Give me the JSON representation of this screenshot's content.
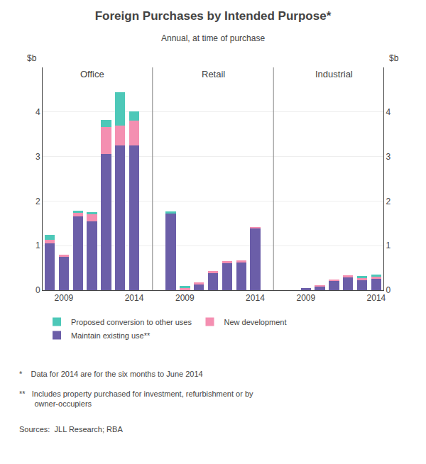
{
  "chart_data": {
    "type": "bar",
    "stacked": true,
    "title": "Foreign Purchases by Intended Purpose*",
    "subtitle": "Annual, at time of purchase",
    "ylabel": "$b",
    "y2label": "$b",
    "annotations": [
      "Office",
      "Retail",
      "Industrial"
    ],
    "footnotes": [
      "*    Data for 2014 are for the six months to June 2014",
      "**   Includes property purchased for investment, refurbishment or by\n       owner-occupiers",
      "Sources:  JLL Research; RBA"
    ],
    "categories": [
      null,
      "2009",
      null,
      null,
      null,
      null,
      "2014",
      null,
      "2009",
      null,
      null,
      null,
      null,
      "2014",
      null,
      "2009",
      null,
      null,
      null,
      null,
      "2014"
    ],
    "series": [
      {
        "name": "Maintain existing use**",
        "color": "#6B5EA8",
        "values": [
          1.05,
          0.75,
          1.65,
          1.55,
          3.05,
          3.25,
          3.25,
          1.72,
          0.0,
          0.12,
          0.38,
          0.6,
          0.62,
          1.4,
          0.0,
          0.05,
          0.08,
          0.22,
          0.28,
          0.22,
          0.25
        ]
      },
      {
        "name": "New development",
        "color": "#F48FB1",
        "values": [
          0.08,
          0.05,
          0.08,
          0.15,
          0.62,
          0.45,
          0.55,
          0.0,
          0.05,
          0.05,
          0.05,
          0.05,
          0.05,
          0.02,
          0.0,
          0.0,
          0.02,
          0.02,
          0.05,
          0.05,
          0.05
        ]
      },
      {
        "name": "Proposed conversion to other uses",
        "color": "#4DC8B8",
        "values": [
          0.12,
          0.0,
          0.05,
          0.05,
          0.15,
          0.75,
          0.22,
          0.05,
          0.05,
          0.0,
          0.0,
          0.0,
          0.0,
          0.0,
          0.0,
          0.0,
          0.0,
          0.0,
          0.0,
          0.05,
          0.05
        ]
      }
    ],
    "ylim": [
      0,
      5.0
    ],
    "yticks": [
      0,
      1,
      2,
      3,
      4
    ],
    "y2lim": [
      0,
      5.0
    ],
    "y2ticks": [
      0,
      1,
      2,
      3,
      4
    ],
    "grid": true,
    "legend": "bottom"
  }
}
